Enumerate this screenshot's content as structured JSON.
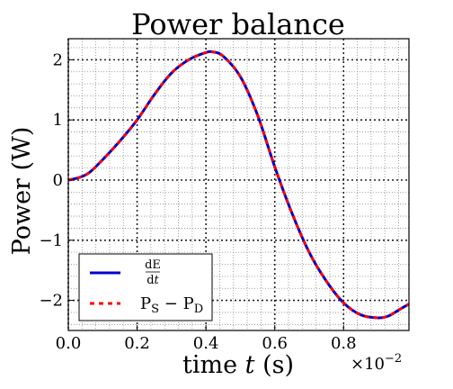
{
  "chart_data": {
    "type": "line",
    "title": "Power balance",
    "xlabel_prefix": "time ",
    "xlabel_var": "t",
    "xlabel_suffix": " (s)",
    "ylabel": "Power (W)",
    "x_multiplier_base": "×10",
    "x_multiplier_exp": "−2",
    "xlim": [
      0.0,
      0.99
    ],
    "ylim": [
      -2.5,
      2.35
    ],
    "grid": true,
    "legend_position": "lower-left",
    "x_ticks": [
      0.0,
      0.2,
      0.4,
      0.6,
      0.8
    ],
    "x_tick_labels": [
      "0.0",
      "0.2",
      "0.4",
      "0.6",
      "0.8"
    ],
    "y_ticks": [
      -2,
      -1,
      0,
      1,
      2
    ],
    "y_tick_labels": [
      "−2",
      "−1",
      "0",
      "1",
      "2"
    ],
    "x": [
      0.0,
      0.03,
      0.06,
      0.1,
      0.15,
      0.2,
      0.25,
      0.3,
      0.35,
      0.4,
      0.42,
      0.45,
      0.5,
      0.55,
      0.6,
      0.65,
      0.7,
      0.75,
      0.8,
      0.85,
      0.9,
      0.93,
      0.96,
      0.99
    ],
    "series": [
      {
        "name_num": "dE",
        "name_den_prefix": "d",
        "name_den_var": "t",
        "style": "solid",
        "color": "#0000cc",
        "values": [
          0.0,
          0.04,
          0.12,
          0.34,
          0.65,
          1.0,
          1.42,
          1.78,
          2.0,
          2.12,
          2.13,
          2.06,
          1.72,
          1.08,
          0.22,
          -0.55,
          -1.2,
          -1.68,
          -2.04,
          -2.24,
          -2.29,
          -2.26,
          -2.16,
          -2.06
        ]
      },
      {
        "name_main1": "P",
        "name_sub1": "S",
        "name_op": " − ",
        "name_main2": "P",
        "name_sub2": "D",
        "style": "dashed",
        "color": "#ff0000",
        "values": [
          0.0,
          0.04,
          0.12,
          0.34,
          0.65,
          1.0,
          1.42,
          1.78,
          2.0,
          2.12,
          2.13,
          2.06,
          1.72,
          1.08,
          0.22,
          -0.55,
          -1.2,
          -1.68,
          -2.04,
          -2.24,
          -2.29,
          -2.26,
          -2.16,
          -2.06
        ]
      }
    ]
  }
}
